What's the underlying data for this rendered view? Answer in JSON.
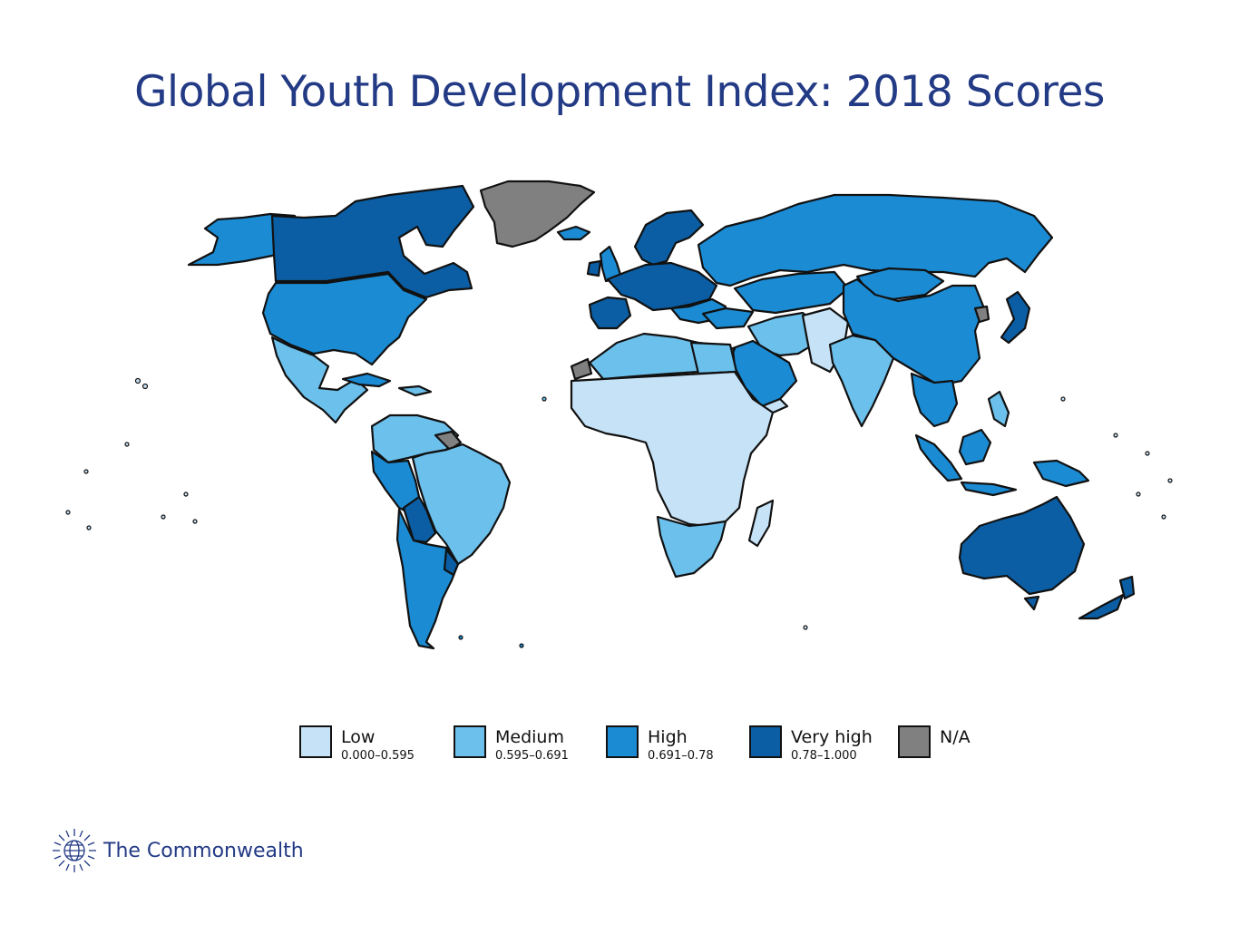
{
  "title": "Global Youth Development Index: 2018 Scores",
  "legend": [
    {
      "label": "Low",
      "range": "0.000–0.595",
      "color": "#c6e2f7"
    },
    {
      "label": "Medium",
      "range": "0.595–0.691",
      "color": "#6cc0ec"
    },
    {
      "label": "High",
      "range": "0.691–0.78",
      "color": "#1b8bd3"
    },
    {
      "label": "Very high",
      "range": "0.78–1.000",
      "color": "#0b5ea3"
    },
    {
      "label": "N/A",
      "range": "",
      "color": "#808080"
    }
  ],
  "brand": {
    "name": "The Commonwealth",
    "icon": "commonwealth-globe-icon"
  },
  "colors": {
    "title": "#233a85",
    "border": "#111111",
    "background": "#ffffff"
  }
}
